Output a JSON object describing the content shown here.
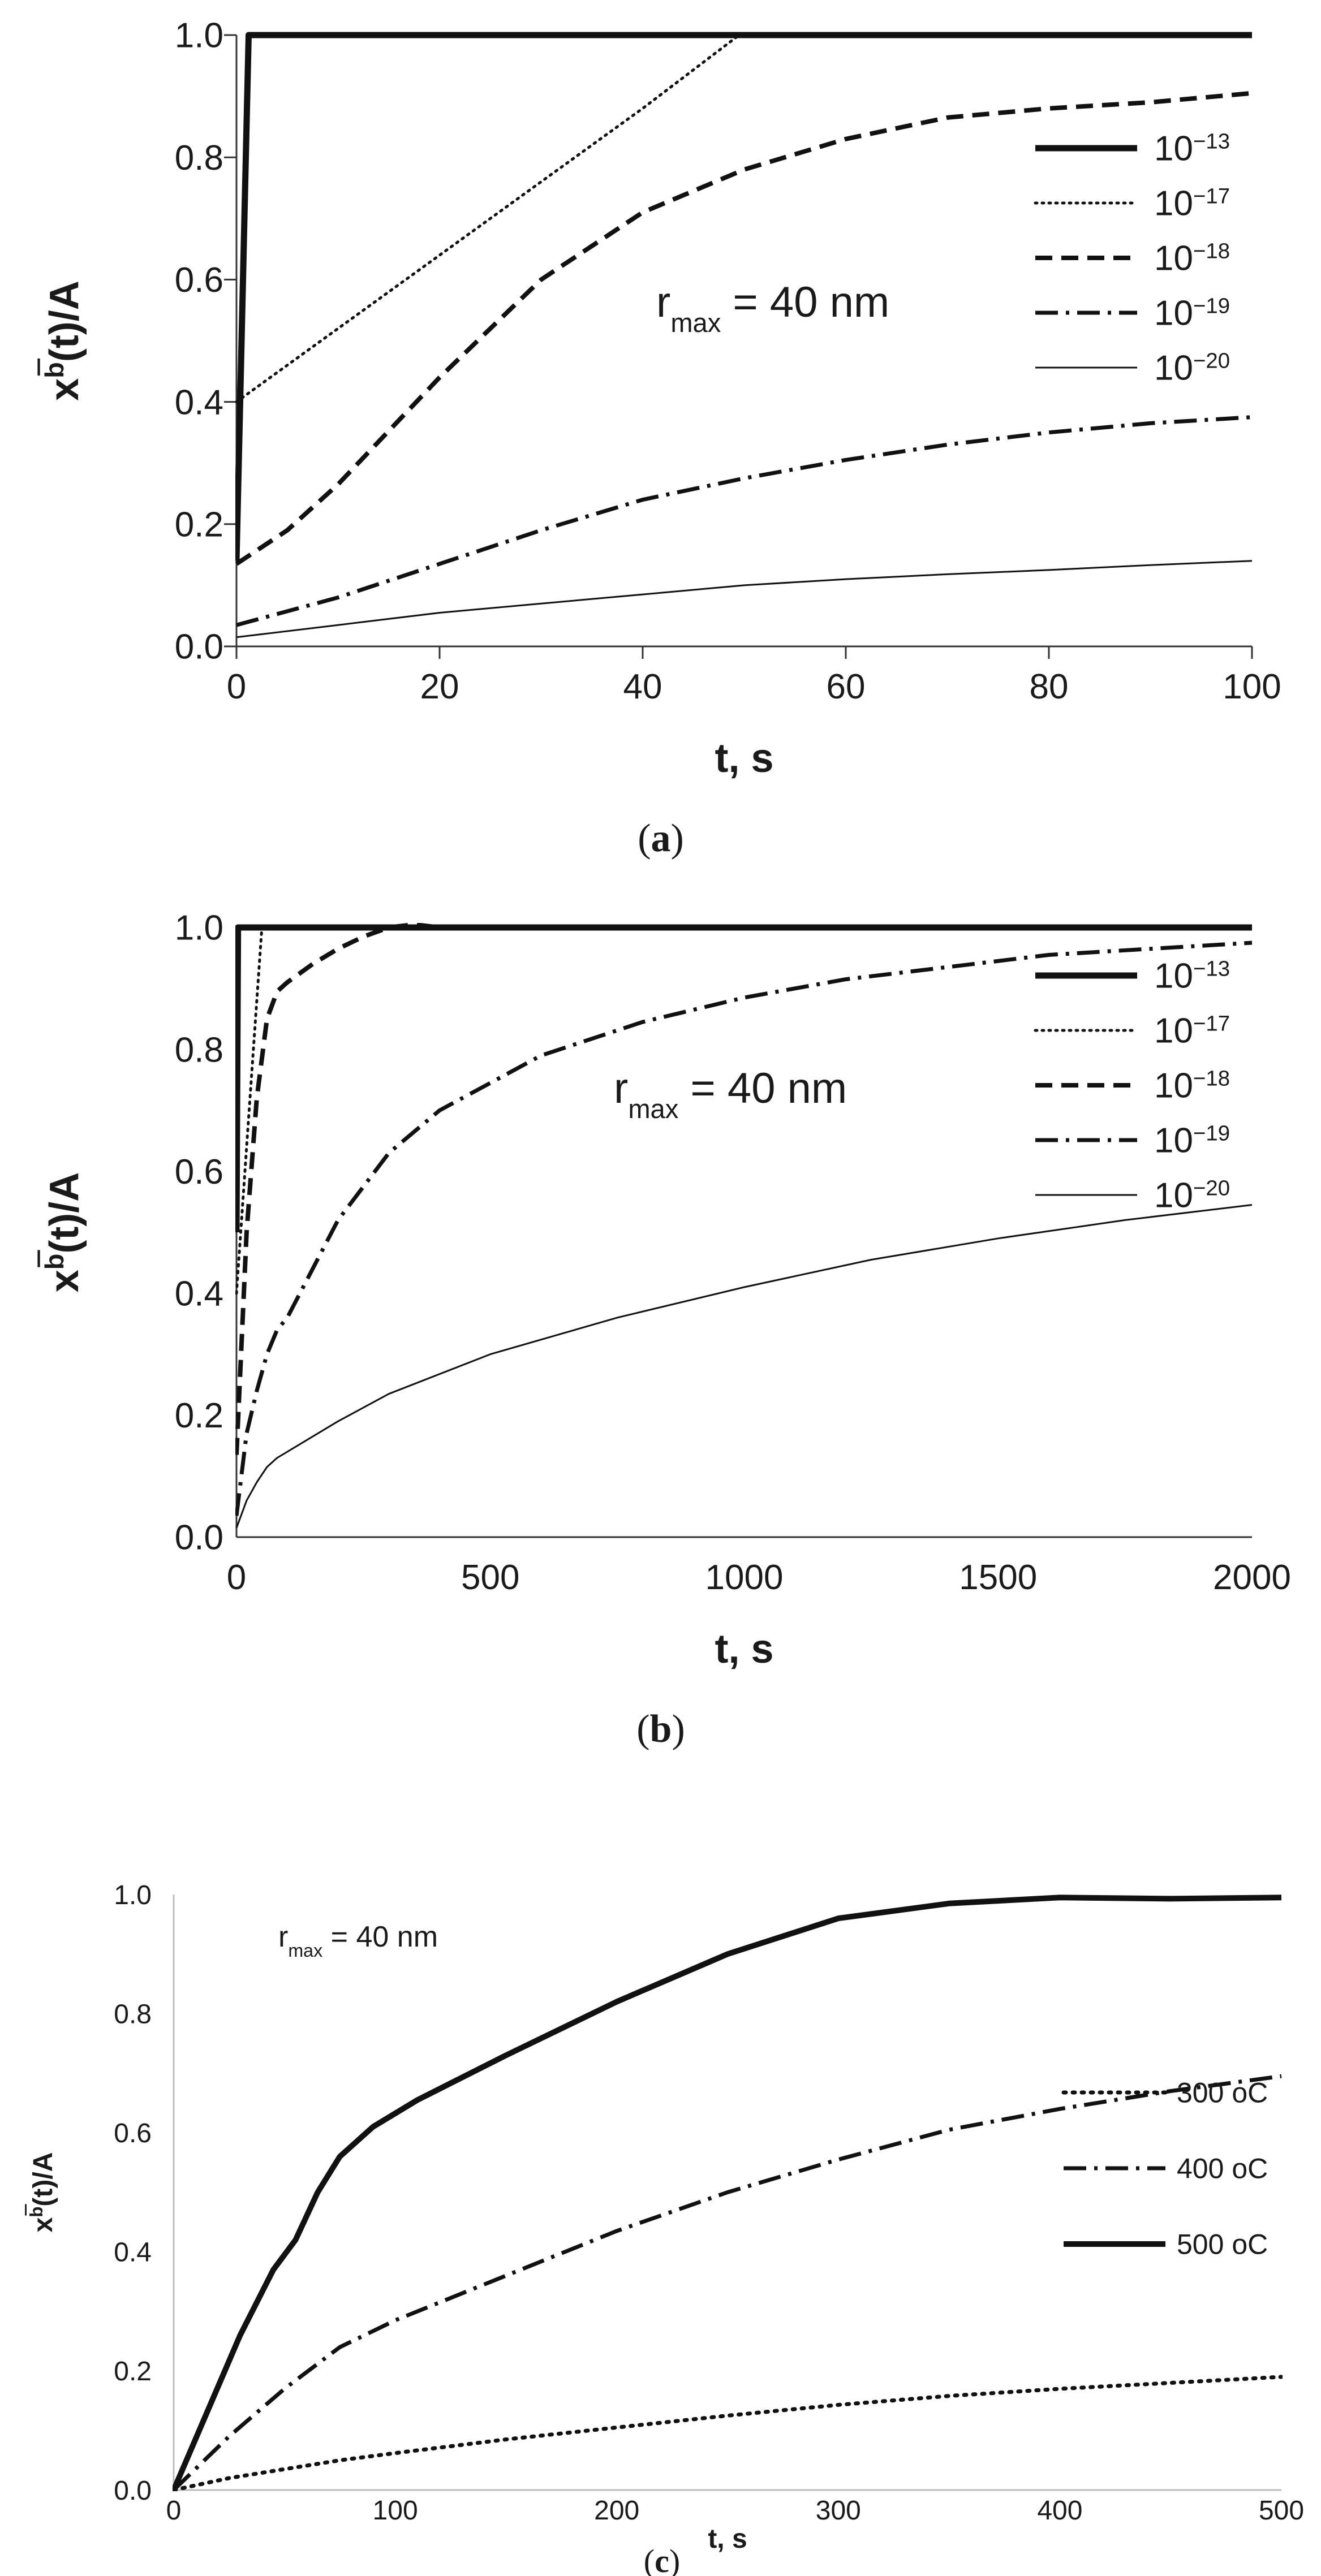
{
  "chart_data": [
    {
      "type": "line",
      "panel": "a",
      "caption": "(a)",
      "xlabel": "t, s",
      "ylabel_parts": [
        "x",
        "b",
        "(t)/A"
      ],
      "annotation": {
        "base": "r",
        "sub": "max",
        "rest": " = 40 nm"
      },
      "xlim": [
        0,
        100
      ],
      "ylim": [
        0,
        1
      ],
      "xticks": [
        0,
        20,
        40,
        60,
        80,
        100
      ],
      "yticks": [
        0,
        0.2,
        0.4,
        0.6,
        0.8,
        1.0
      ],
      "ytick_labels": [
        "0.0",
        "0.2",
        "0.4",
        "0.6",
        "0.8",
        "1.0"
      ],
      "series": [
        {
          "label_base": "10",
          "label_exp": "−13",
          "style": "solid-thick",
          "x": [
            0,
            1.2,
            100
          ],
          "y": [
            0.14,
            1.0,
            1.0
          ]
        },
        {
          "label_base": "10",
          "label_exp": "−17",
          "style": "dotted",
          "x": [
            0,
            10,
            20,
            30,
            40,
            49.5
          ],
          "y": [
            0.4,
            0.52,
            0.64,
            0.76,
            0.88,
            1.0
          ]
        },
        {
          "label_base": "10",
          "label_exp": "−18",
          "style": "dashed",
          "x": [
            0,
            5,
            10,
            20,
            30,
            40,
            50,
            60,
            70,
            80,
            90,
            100
          ],
          "y": [
            0.135,
            0.19,
            0.265,
            0.44,
            0.6,
            0.71,
            0.78,
            0.83,
            0.865,
            0.88,
            0.89,
            0.905
          ]
        },
        {
          "label_base": "10",
          "label_exp": "−19",
          "style": "dashdot",
          "x": [
            0,
            10,
            20,
            30,
            40,
            50,
            60,
            70,
            80,
            90,
            100
          ],
          "y": [
            0.035,
            0.08,
            0.135,
            0.19,
            0.24,
            0.275,
            0.305,
            0.33,
            0.35,
            0.365,
            0.375
          ]
        },
        {
          "label_base": "10",
          "label_exp": "−20",
          "style": "solid-thin",
          "x": [
            0,
            10,
            20,
            30,
            40,
            50,
            60,
            70,
            80,
            90,
            100
          ],
          "y": [
            0.015,
            0.035,
            0.055,
            0.07,
            0.085,
            0.1,
            0.11,
            0.118,
            0.125,
            0.133,
            0.14
          ]
        }
      ]
    },
    {
      "type": "line",
      "panel": "b",
      "caption": "(b)",
      "xlabel": "t, s",
      "ylabel_parts": [
        "x",
        "b",
        "(t)/A"
      ],
      "annotation": {
        "base": "r",
        "sub": "max",
        "rest": " = 40 nm"
      },
      "xlim": [
        0,
        2000
      ],
      "ylim": [
        0,
        1
      ],
      "xticks": [
        0,
        500,
        1000,
        1500,
        2000
      ],
      "yticks": [
        0,
        0.2,
        0.4,
        0.6,
        0.8,
        1.0
      ],
      "ytick_labels": [
        "0.0",
        "0.2",
        "0.4",
        "0.6",
        "0.8",
        "1.0"
      ],
      "series": [
        {
          "label_base": "10",
          "label_exp": "−13",
          "style": "solid-thick",
          "x": [
            0,
            3,
            2000
          ],
          "y": [
            0.5,
            1.0,
            1.0
          ]
        },
        {
          "label_base": "10",
          "label_exp": "−17",
          "style": "dotted",
          "x": [
            0,
            10,
            20,
            30,
            40,
            50
          ],
          "y": [
            0.4,
            0.52,
            0.64,
            0.76,
            0.88,
            1.0
          ]
        },
        {
          "label_base": "10",
          "label_exp": "−18",
          "style": "dashed",
          "x": [
            0,
            20,
            40,
            60,
            80,
            100,
            150,
            200,
            250,
            300,
            350,
            400,
            600,
            2000
          ],
          "y": [
            0.135,
            0.5,
            0.72,
            0.85,
            0.895,
            0.91,
            0.94,
            0.965,
            0.985,
            1.0,
            1.005,
            1.0,
            1.0,
            1.0
          ]
        },
        {
          "label_base": "10",
          "label_exp": "−19",
          "style": "dashdot",
          "x": [
            0,
            20,
            40,
            60,
            80,
            100,
            150,
            200,
            300,
            400,
            600,
            800,
            1000,
            1200,
            1400,
            1600,
            1800,
            2000
          ],
          "y": [
            0.035,
            0.17,
            0.24,
            0.3,
            0.34,
            0.36,
            0.44,
            0.52,
            0.63,
            0.7,
            0.79,
            0.845,
            0.885,
            0.915,
            0.935,
            0.955,
            0.965,
            0.975
          ]
        },
        {
          "label_base": "10",
          "label_exp": "−20",
          "style": "solid-thin",
          "x": [
            0,
            20,
            40,
            60,
            80,
            100,
            200,
            300,
            500,
            750,
            1000,
            1250,
            1500,
            1750,
            2000
          ],
          "y": [
            0.015,
            0.06,
            0.09,
            0.115,
            0.13,
            0.14,
            0.19,
            0.235,
            0.3,
            0.36,
            0.41,
            0.455,
            0.49,
            0.52,
            0.545
          ]
        }
      ]
    },
    {
      "type": "line",
      "panel": "c",
      "caption": "(c)",
      "xlabel": "t, s",
      "ylabel_parts": [
        "x",
        "b",
        "(t)/A"
      ],
      "annotation": {
        "base": "r",
        "sub": "max",
        "rest": " = 40 nm"
      },
      "xlim": [
        0,
        500
      ],
      "ylim": [
        0,
        1
      ],
      "xticks": [
        0,
        100,
        200,
        300,
        400,
        500
      ],
      "yticks": [
        0,
        0.2,
        0.4,
        0.6,
        0.8,
        1.0
      ],
      "ytick_labels": [
        "0.0",
        "0.2",
        "0.4",
        "0.6",
        "0.8",
        "1.0"
      ],
      "series": [
        {
          "label": "300 oC",
          "style": "dotted-thick",
          "x": [
            0,
            25,
            50,
            75,
            100,
            150,
            200,
            250,
            300,
            350,
            400,
            450,
            500
          ],
          "y": [
            0,
            0.02,
            0.035,
            0.05,
            0.062,
            0.085,
            0.105,
            0.125,
            0.143,
            0.158,
            0.17,
            0.18,
            0.19
          ]
        },
        {
          "label": "400 oC",
          "style": "dashdot",
          "x": [
            0,
            25,
            50,
            75,
            100,
            150,
            200,
            250,
            300,
            350,
            400,
            450,
            500
          ],
          "y": [
            0,
            0.09,
            0.17,
            0.24,
            0.285,
            0.36,
            0.435,
            0.5,
            0.555,
            0.605,
            0.64,
            0.67,
            0.695
          ]
        },
        {
          "label": "500 oC",
          "style": "solid-thick",
          "x": [
            0,
            15,
            30,
            45,
            55,
            65,
            75,
            90,
            110,
            150,
            200,
            250,
            300,
            350,
            400,
            450,
            500
          ],
          "y": [
            0,
            0.13,
            0.26,
            0.37,
            0.42,
            0.5,
            0.56,
            0.61,
            0.655,
            0.73,
            0.82,
            0.9,
            0.96,
            0.985,
            0.995,
            0.993,
            0.995
          ]
        }
      ]
    }
  ]
}
